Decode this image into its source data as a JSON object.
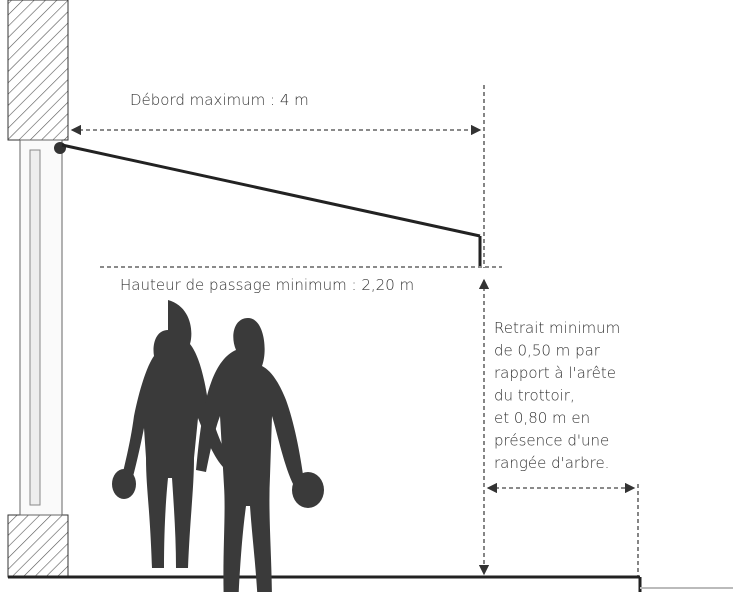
{
  "labels": {
    "overhang": "Débord maximum : 4 m",
    "clearance": "Hauteur de passage minimum : 2,20 m",
    "setback": {
      "lines": [
        "Retrait minimum",
        "de 0,50 m par",
        "rapport à l'arête",
        "du trottoir,",
        "et 0,80 m en",
        "présence d'une",
        "rangée d'arbre."
      ]
    }
  }
}
